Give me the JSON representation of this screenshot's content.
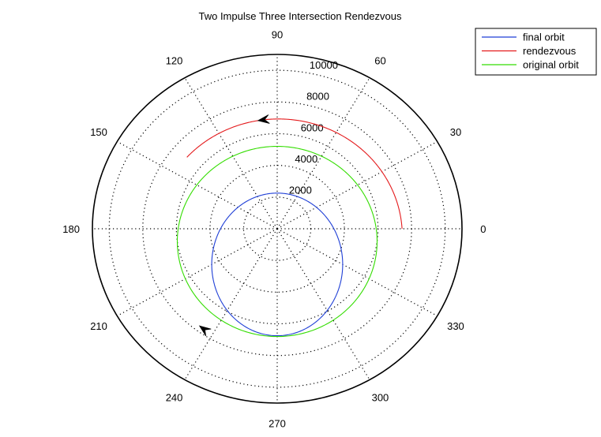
{
  "chart_data": {
    "type": "polar",
    "title": "Two Impulse Three Intersection Rendezvous",
    "rmax": 11000,
    "radial_ticks": [
      2000,
      4000,
      6000,
      8000,
      10000
    ],
    "radial_tick_labels": [
      "2000",
      "4000",
      "6000",
      "8000",
      "10000"
    ],
    "radial_label_angle_deg": 80,
    "angle_ticks_deg": [
      0,
      30,
      60,
      90,
      120,
      150,
      180,
      210,
      240,
      270,
      300,
      330
    ],
    "angle_tick_labels": [
      "0",
      "30",
      "60",
      "90",
      "120",
      "150",
      "180",
      "210",
      "240",
      "270",
      "300",
      "330"
    ],
    "grid": true,
    "legend_position": "top-right",
    "series": [
      {
        "name": "final orbit",
        "color": "#1f3fd6",
        "orbit": {
          "a": 4500,
          "e": 0.5,
          "periapsis_deg": 90,
          "theta_start_deg": 0,
          "theta_end_deg": 360
        }
      },
      {
        "name": "rendezvous",
        "color": "#e41a1c",
        "orbit": {
          "a": 7380,
          "e": 0.0623,
          "periapsis_deg": 100,
          "theta_start_deg": 0,
          "theta_end_deg": 140
        }
      },
      {
        "name": "original orbit",
        "color": "#33dd00",
        "orbit": {
          "a": 6000,
          "e": 0.1333,
          "periapsis_deg": 90,
          "theta_start_deg": 0,
          "theta_end_deg": 360
        }
      }
    ],
    "arrows": [
      {
        "theta_deg": 99.5,
        "direction": "counterclockwise"
      },
      {
        "theta_deg": 233,
        "direction": "backward"
      }
    ]
  }
}
